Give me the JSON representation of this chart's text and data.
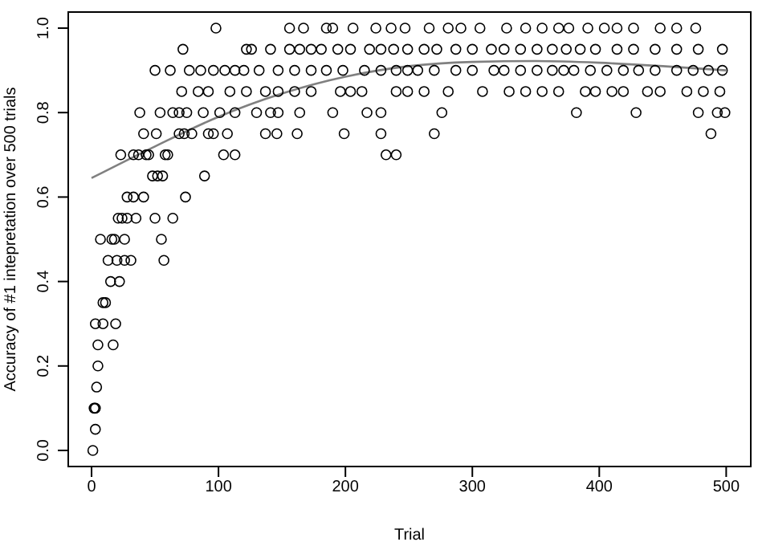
{
  "chart_data": {
    "type": "scatter",
    "xlabel": "Trial",
    "ylabel": "Accuracy of #1 intepretation over 500 trials",
    "xlim": [
      -19,
      520
    ],
    "ylim": [
      -0.04,
      1.04
    ],
    "xticks": [
      0,
      100,
      200,
      300,
      400,
      500
    ],
    "yticks": [
      {
        "value": 0,
        "label": "0.0"
      },
      {
        "value": 0.2,
        "label": "0.2"
      },
      {
        "value": 0.4,
        "label": "0.4"
      },
      {
        "value": 0.6,
        "label": "0.6"
      },
      {
        "value": 0.8,
        "label": "0.8"
      },
      {
        "value": 1,
        "label": "1.0"
      }
    ],
    "series": [
      {
        "type": "scatter",
        "marker": "circle",
        "color": "#000000",
        "x": [
          1,
          3,
          2,
          3,
          4,
          5,
          5,
          17,
          3,
          9,
          19,
          9,
          11,
          15,
          22,
          13,
          20,
          26,
          31,
          57,
          7,
          16,
          18,
          26,
          55,
          21,
          24,
          28,
          35,
          50,
          64,
          28,
          33,
          41,
          74,
          48,
          52,
          56,
          89,
          23,
          33,
          37,
          43,
          45,
          58,
          60,
          104,
          113,
          232,
          240,
          41,
          51,
          69,
          73,
          79,
          92,
          96,
          107,
          137,
          146,
          162,
          199,
          228,
          270,
          488,
          38,
          54,
          64,
          69,
          75,
          88,
          101,
          113,
          130,
          141,
          147,
          164,
          190,
          217,
          228,
          276,
          382,
          429,
          478,
          493,
          499,
          71,
          84,
          92,
          109,
          122,
          137,
          147,
          160,
          173,
          196,
          204,
          213,
          240,
          249,
          262,
          281,
          308,
          329,
          342,
          355,
          368,
          389,
          397,
          410,
          419,
          438,
          448,
          469,
          482,
          495,
          50,
          62,
          77,
          86,
          96,
          105,
          113,
          120,
          132,
          147,
          160,
          173,
          185,
          198,
          215,
          228,
          240,
          249,
          257,
          270,
          287,
          300,
          317,
          325,
          338,
          351,
          363,
          372,
          380,
          393,
          406,
          419,
          431,
          444,
          461,
          474,
          486,
          497,
          72,
          122,
          126,
          141,
          156,
          164,
          173,
          181,
          194,
          204,
          219,
          228,
          238,
          249,
          262,
          272,
          287,
          300,
          315,
          325,
          338,
          351,
          363,
          374,
          385,
          397,
          414,
          427,
          444,
          461,
          478,
          497,
          98,
          156,
          167,
          185,
          190,
          206,
          224,
          236,
          247,
          266,
          281,
          291,
          306,
          327,
          342,
          355,
          368,
          376,
          391,
          404,
          414,
          427,
          448,
          461,
          476
        ],
        "values": [
          0,
          0.05,
          0.1,
          0.1,
          0.15,
          0.2,
          0.25,
          0.25,
          0.3,
          0.3,
          0.3,
          0.35,
          0.35,
          0.4,
          0.4,
          0.45,
          0.45,
          0.45,
          0.45,
          0.45,
          0.5,
          0.5,
          0.5,
          0.5,
          0.5,
          0.55,
          0.55,
          0.55,
          0.55,
          0.55,
          0.55,
          0.6,
          0.6,
          0.6,
          0.6,
          0.65,
          0.65,
          0.65,
          0.65,
          0.7,
          0.7,
          0.7,
          0.7,
          0.7,
          0.7,
          0.7,
          0.7,
          0.7,
          0.7,
          0.7,
          0.75,
          0.75,
          0.75,
          0.75,
          0.75,
          0.75,
          0.75,
          0.75,
          0.75,
          0.75,
          0.75,
          0.75,
          0.75,
          0.75,
          0.75,
          0.8,
          0.8,
          0.8,
          0.8,
          0.8,
          0.8,
          0.8,
          0.8,
          0.8,
          0.8,
          0.8,
          0.8,
          0.8,
          0.8,
          0.8,
          0.8,
          0.8,
          0.8,
          0.8,
          0.8,
          0.8,
          0.85,
          0.85,
          0.85,
          0.85,
          0.85,
          0.85,
          0.85,
          0.85,
          0.85,
          0.85,
          0.85,
          0.85,
          0.85,
          0.85,
          0.85,
          0.85,
          0.85,
          0.85,
          0.85,
          0.85,
          0.85,
          0.85,
          0.85,
          0.85,
          0.85,
          0.85,
          0.85,
          0.85,
          0.85,
          0.85,
          0.9,
          0.9,
          0.9,
          0.9,
          0.9,
          0.9,
          0.9,
          0.9,
          0.9,
          0.9,
          0.9,
          0.9,
          0.9,
          0.9,
          0.9,
          0.9,
          0.9,
          0.9,
          0.9,
          0.9,
          0.9,
          0.9,
          0.9,
          0.9,
          0.9,
          0.9,
          0.9,
          0.9,
          0.9,
          0.9,
          0.9,
          0.9,
          0.9,
          0.9,
          0.9,
          0.9,
          0.9,
          0.9,
          0.95,
          0.95,
          0.95,
          0.95,
          0.95,
          0.95,
          0.95,
          0.95,
          0.95,
          0.95,
          0.95,
          0.95,
          0.95,
          0.95,
          0.95,
          0.95,
          0.95,
          0.95,
          0.95,
          0.95,
          0.95,
          0.95,
          0.95,
          0.95,
          0.95,
          0.95,
          0.95,
          0.95,
          0.95,
          0.95,
          0.95,
          0.95,
          1,
          1,
          1,
          1,
          1,
          1,
          1,
          1,
          1,
          1,
          1,
          1,
          1,
          1,
          1,
          1,
          1,
          1,
          1,
          1,
          1,
          1,
          1,
          1,
          1
        ]
      },
      {
        "type": "line",
        "marker": "none",
        "color": "#808080",
        "x": [
          0,
          50,
          100,
          150,
          200,
          250,
          300,
          350,
          400,
          450,
          500
        ],
        "values": [
          0.645,
          0.72,
          0.79,
          0.845,
          0.885,
          0.91,
          0.92,
          0.922,
          0.918,
          0.91,
          0.9
        ]
      }
    ]
  }
}
